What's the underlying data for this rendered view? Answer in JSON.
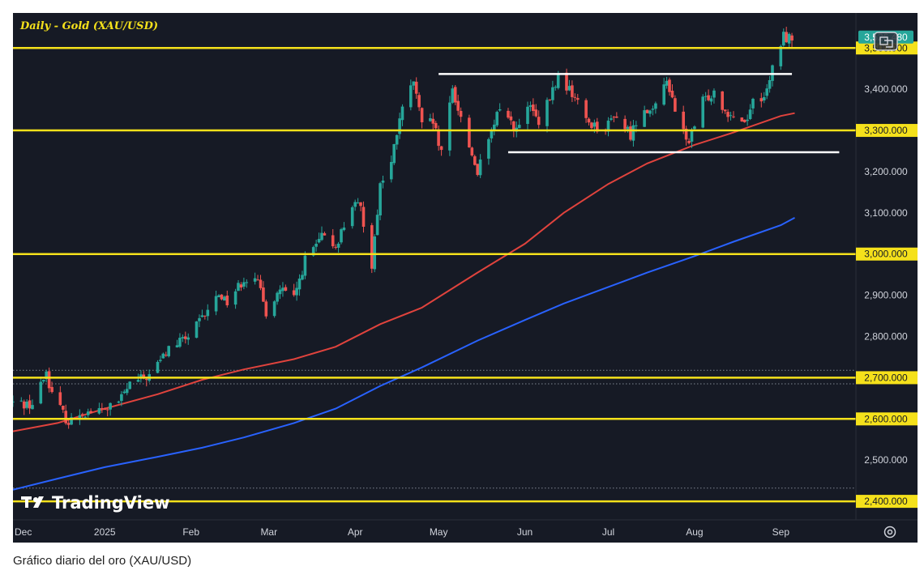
{
  "chart_data": {
    "type": "candlestick",
    "title": "Daily - Gold (XAU/USD)",
    "symbol": "XAU/USD",
    "timeframe": "Daily",
    "watermark": "TradingView",
    "last_price": "3,526.480",
    "y_axis": {
      "range": [
        2355,
        3585
      ],
      "tick_values": [
        2400,
        2500,
        2600,
        2700,
        2800,
        2900,
        3000,
        3100,
        3200,
        3300,
        3400
      ],
      "tick_labels": [
        "2,400.000",
        "2,500.000",
        "2,600.000",
        "2,700.000",
        "2,800.000",
        "2,900.000",
        "3,000.000",
        "3,100.000",
        "3,200.000",
        "3,300.000",
        "3,400.000"
      ]
    },
    "x_axis": {
      "range": [
        "2024-11-29",
        "2025-09-28"
      ],
      "ticks": [
        {
          "label": "Dec",
          "date": "2024-12-01"
        },
        {
          "label": "2025",
          "date": "2025-01-01"
        },
        {
          "label": "Feb",
          "date": "2025-02-01"
        },
        {
          "label": "Mar",
          "date": "2025-03-01"
        },
        {
          "label": "Apr",
          "date": "2025-04-01"
        },
        {
          "label": "May",
          "date": "2025-05-01"
        },
        {
          "label": "Jun",
          "date": "2025-06-01"
        },
        {
          "label": "Jul",
          "date": "2025-07-01"
        },
        {
          "label": "Aug",
          "date": "2025-08-01"
        },
        {
          "label": "Sep",
          "date": "2025-09-01"
        }
      ]
    },
    "horizontal_levels": [
      {
        "price": 3500,
        "label": "3,500.000",
        "color": "#f5e11b"
      },
      {
        "price": 3300,
        "label": "3,300.000",
        "color": "#f5e11b"
      },
      {
        "price": 3000,
        "label": "3,000.000",
        "color": "#f5e11b"
      },
      {
        "price": 2700,
        "label": "2,700.000",
        "color": "#f5e11b"
      },
      {
        "price": 2600,
        "label": "2,600.000",
        "color": "#f5e11b"
      },
      {
        "price": 2400,
        "label": "2,400.000",
        "color": "#f5e11b"
      }
    ],
    "dotted_levels": [
      2718,
      2685,
      2432
    ],
    "range_lines": [
      {
        "start": "2025-05-01",
        "end": "2025-09-05",
        "price": 3437,
        "color": "#ffffff"
      },
      {
        "start": "2025-05-26",
        "end": "2025-09-22",
        "price": 3247,
        "color": "#ffffff"
      }
    ],
    "moving_averages": [
      {
        "color": "#e0433d",
        "points": [
          [
            "2024-11-29",
            2570
          ],
          [
            "2024-12-15",
            2590
          ],
          [
            "2025-01-01",
            2625
          ],
          [
            "2025-01-20",
            2660
          ],
          [
            "2025-02-05",
            2695
          ],
          [
            "2025-02-20",
            2720
          ],
          [
            "2025-03-10",
            2745
          ],
          [
            "2025-03-25",
            2775
          ],
          [
            "2025-04-10",
            2830
          ],
          [
            "2025-04-25",
            2870
          ],
          [
            "2025-05-15",
            2955
          ],
          [
            "2025-06-01",
            3025
          ],
          [
            "2025-06-15",
            3100
          ],
          [
            "2025-07-01",
            3170
          ],
          [
            "2025-07-15",
            3220
          ],
          [
            "2025-08-01",
            3265
          ],
          [
            "2025-08-15",
            3295
          ],
          [
            "2025-09-01",
            3335
          ],
          [
            "2025-09-06",
            3342
          ]
        ]
      },
      {
        "color": "#2962ff",
        "points": [
          [
            "2024-11-29",
            2428
          ],
          [
            "2024-12-15",
            2455
          ],
          [
            "2025-01-01",
            2483
          ],
          [
            "2025-01-20",
            2508
          ],
          [
            "2025-02-05",
            2530
          ],
          [
            "2025-02-20",
            2555
          ],
          [
            "2025-03-10",
            2590
          ],
          [
            "2025-03-25",
            2625
          ],
          [
            "2025-04-10",
            2680
          ],
          [
            "2025-04-25",
            2725
          ],
          [
            "2025-05-15",
            2790
          ],
          [
            "2025-06-01",
            2840
          ],
          [
            "2025-06-15",
            2880
          ],
          [
            "2025-07-01",
            2920
          ],
          [
            "2025-07-15",
            2955
          ],
          [
            "2025-08-01",
            2995
          ],
          [
            "2025-08-15",
            3030
          ],
          [
            "2025-09-01",
            3070
          ],
          [
            "2025-09-06",
            3088
          ]
        ]
      }
    ],
    "candle_colors": {
      "up": "#26a69a",
      "down": "#ef5350"
    },
    "close_path": [
      [
        "2024-11-29",
        2640
      ],
      [
        "2024-12-06",
        2635
      ],
      [
        "2024-12-11",
        2715
      ],
      [
        "2024-12-13",
        2660
      ],
      [
        "2024-12-19",
        2590
      ],
      [
        "2024-12-23",
        2615
      ],
      [
        "2024-12-31",
        2620
      ],
      [
        "2025-01-06",
        2640
      ],
      [
        "2025-01-10",
        2685
      ],
      [
        "2025-01-17",
        2705
      ],
      [
        "2025-01-24",
        2770
      ],
      [
        "2025-01-31",
        2800
      ],
      [
        "2025-02-07",
        2860
      ],
      [
        "2025-02-11",
        2905
      ],
      [
        "2025-02-14",
        2885
      ],
      [
        "2025-02-20",
        2940
      ],
      [
        "2025-02-24",
        2950
      ],
      [
        "2025-02-28",
        2860
      ],
      [
        "2025-03-05",
        2915
      ],
      [
        "2025-03-10",
        2890
      ],
      [
        "2025-03-14",
        2985
      ],
      [
        "2025-03-20",
        3040
      ],
      [
        "2025-03-25",
        3020
      ],
      [
        "2025-03-31",
        3120
      ],
      [
        "2025-04-03",
        3110
      ],
      [
        "2025-04-07",
        2975
      ],
      [
        "2025-04-10",
        3170
      ],
      [
        "2025-04-14",
        3220
      ],
      [
        "2025-04-17",
        3330
      ],
      [
        "2025-04-22",
        3420
      ],
      [
        "2025-04-25",
        3310
      ],
      [
        "2025-04-29",
        3320
      ],
      [
        "2025-05-02",
        3240
      ],
      [
        "2025-05-06",
        3400
      ],
      [
        "2025-05-09",
        3330
      ],
      [
        "2025-05-13",
        3240
      ],
      [
        "2025-05-15",
        3200
      ],
      [
        "2025-05-20",
        3290
      ],
      [
        "2025-05-23",
        3360
      ],
      [
        "2025-05-29",
        3300
      ],
      [
        "2025-06-03",
        3360
      ],
      [
        "2025-06-06",
        3310
      ],
      [
        "2025-06-13",
        3430
      ],
      [
        "2025-06-18",
        3390
      ],
      [
        "2025-06-24",
        3320
      ],
      [
        "2025-06-30",
        3300
      ],
      [
        "2025-07-03",
        3340
      ],
      [
        "2025-07-09",
        3290
      ],
      [
        "2025-07-14",
        3360
      ],
      [
        "2025-07-17",
        3340
      ],
      [
        "2025-07-22",
        3430
      ],
      [
        "2025-07-25",
        3340
      ],
      [
        "2025-07-30",
        3270
      ],
      [
        "2025-08-04",
        3370
      ],
      [
        "2025-08-08",
        3395
      ],
      [
        "2025-08-12",
        3350
      ],
      [
        "2025-08-19",
        3320
      ],
      [
        "2025-08-22",
        3370
      ],
      [
        "2025-08-27",
        3390
      ],
      [
        "2025-08-29",
        3450
      ],
      [
        "2025-09-02",
        3530
      ],
      [
        "2025-09-05",
        3520
      ]
    ]
  },
  "caption": "Gráfico diario del oro (XAU/USD)",
  "colors": {
    "background": "#161a25",
    "level_line": "#f5e11b",
    "last_price_badge": "#26a69a",
    "text": "#d1d4dc"
  },
  "icons": [
    "settings-icon",
    "snapshot-icon",
    "tradingview-logo"
  ]
}
